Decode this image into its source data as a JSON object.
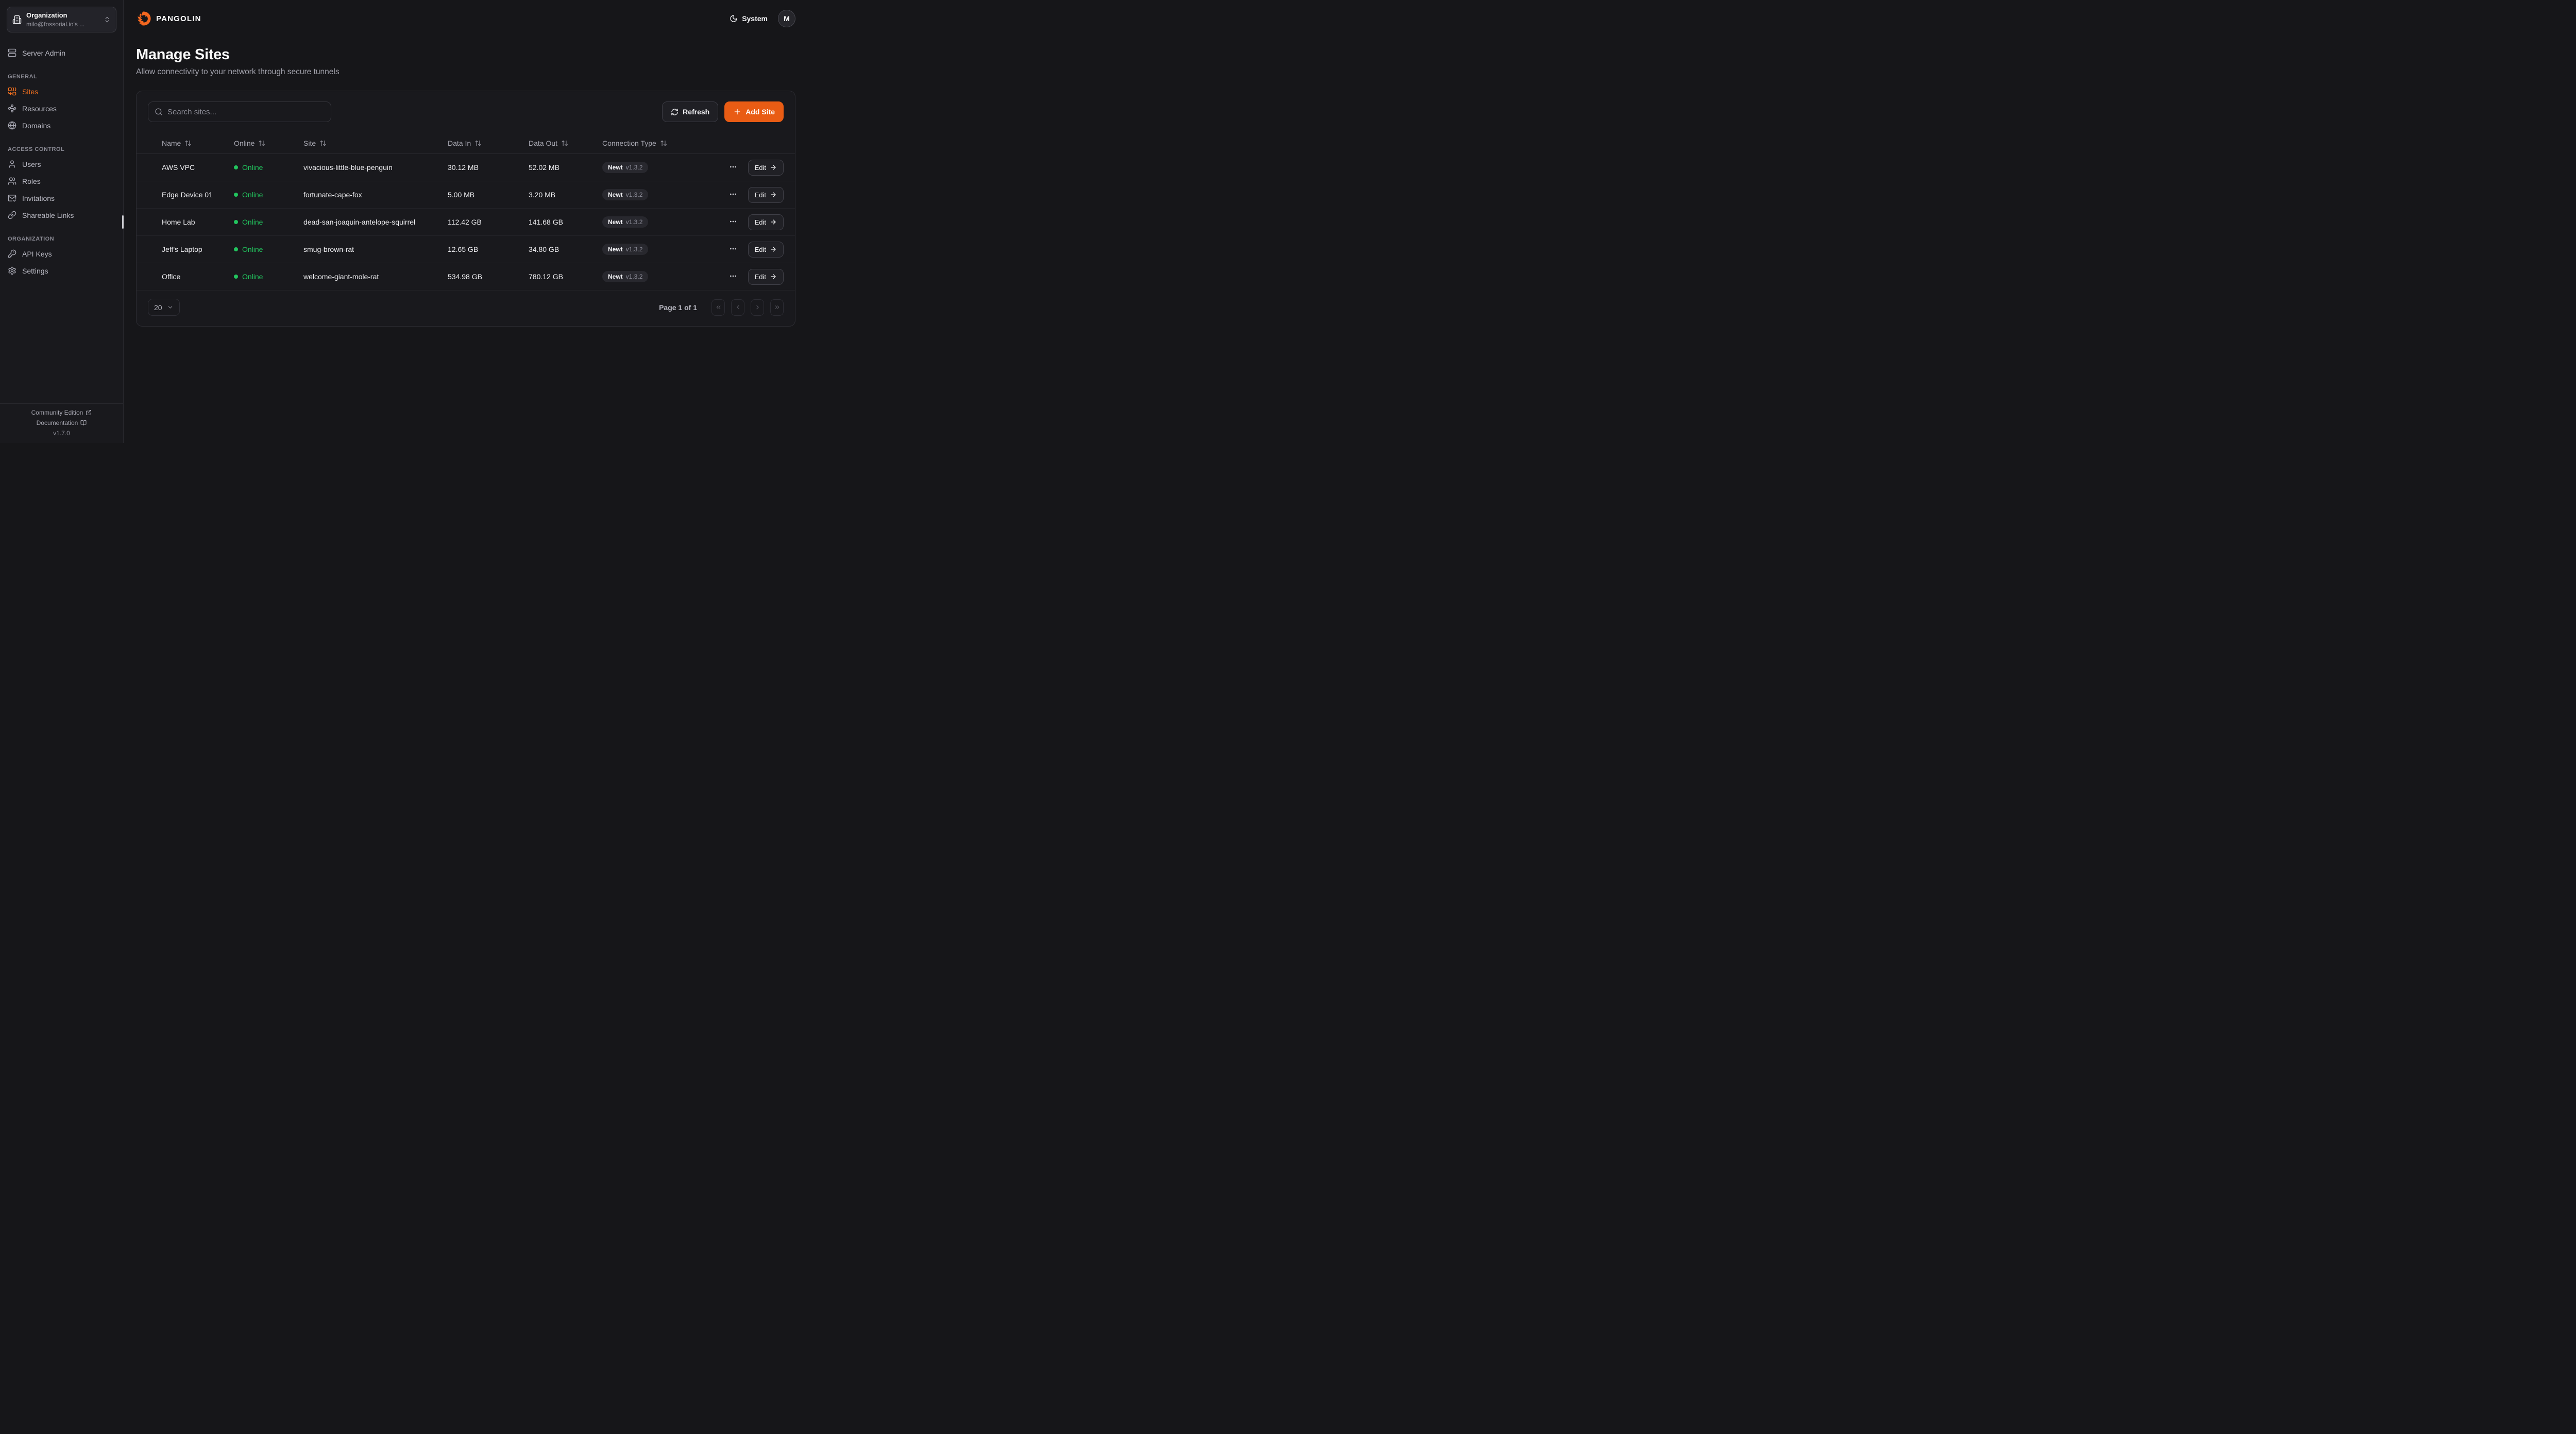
{
  "app": {
    "brand": "PANGOLIN",
    "theme_label": "System",
    "avatar_initial": "M"
  },
  "colors": {
    "accent_orange": "#e95c14",
    "sidebar_active_orange": "#f4711f",
    "online_green": "#22c55e"
  },
  "sidebar": {
    "org": {
      "label": "Organization",
      "value": "milo@fossorial.io's ...",
      "icon": "building"
    },
    "server_admin": {
      "label": "Server Admin",
      "icon": "server"
    },
    "sections": [
      {
        "label": "GENERAL",
        "items": [
          {
            "label": "Sites",
            "icon": "combine",
            "active": true
          },
          {
            "label": "Resources",
            "icon": "waypoints"
          },
          {
            "label": "Domains",
            "icon": "globe"
          }
        ]
      },
      {
        "label": "ACCESS CONTROL",
        "items": [
          {
            "label": "Users",
            "icon": "user"
          },
          {
            "label": "Roles",
            "icon": "users"
          },
          {
            "label": "Invitations",
            "icon": "mail-check"
          },
          {
            "label": "Shareable Links",
            "icon": "link"
          }
        ]
      },
      {
        "label": "ORGANIZATION",
        "items": [
          {
            "label": "API Keys",
            "icon": "key-round"
          },
          {
            "label": "Settings",
            "icon": "settings"
          }
        ]
      }
    ],
    "footer": {
      "community_label": "Community Edition",
      "docs_label": "Documentation",
      "version": "v1.7.0"
    }
  },
  "page": {
    "title": "Manage Sites",
    "subtitle": "Allow connectivity to your network through secure tunnels"
  },
  "toolbar": {
    "search_placeholder": "Search sites...",
    "refresh_label": "Refresh",
    "add_site_label": "Add Site"
  },
  "table": {
    "columns": [
      "Name",
      "Online",
      "Site",
      "Data In",
      "Data Out",
      "Connection Type"
    ],
    "edit_label": "Edit",
    "rows": [
      {
        "name": "AWS VPC",
        "online": "Online",
        "site": "vivacious-little-blue-penguin",
        "data_in": "30.12 MB",
        "data_out": "52.02 MB",
        "connection": {
          "name": "Newt",
          "version": "v1.3.2"
        }
      },
      {
        "name": "Edge Device 01",
        "online": "Online",
        "site": "fortunate-cape-fox",
        "data_in": "5.00 MB",
        "data_out": "3.20 MB",
        "connection": {
          "name": "Newt",
          "version": "v1.3.2"
        }
      },
      {
        "name": "Home Lab",
        "online": "Online",
        "site": "dead-san-joaquin-antelope-squirrel",
        "data_in": "112.42 GB",
        "data_out": "141.68 GB",
        "connection": {
          "name": "Newt",
          "version": "v1.3.2"
        }
      },
      {
        "name": "Jeff's Laptop",
        "online": "Online",
        "site": "smug-brown-rat",
        "data_in": "12.65 GB",
        "data_out": "34.80 GB",
        "connection": {
          "name": "Newt",
          "version": "v1.3.2"
        }
      },
      {
        "name": "Office",
        "online": "Online",
        "site": "welcome-giant-mole-rat",
        "data_in": "534.98 GB",
        "data_out": "780.12 GB",
        "connection": {
          "name": "Newt",
          "version": "v1.3.2"
        }
      }
    ]
  },
  "pagination": {
    "page_size": "20",
    "page_label": "Page 1 of 1"
  }
}
